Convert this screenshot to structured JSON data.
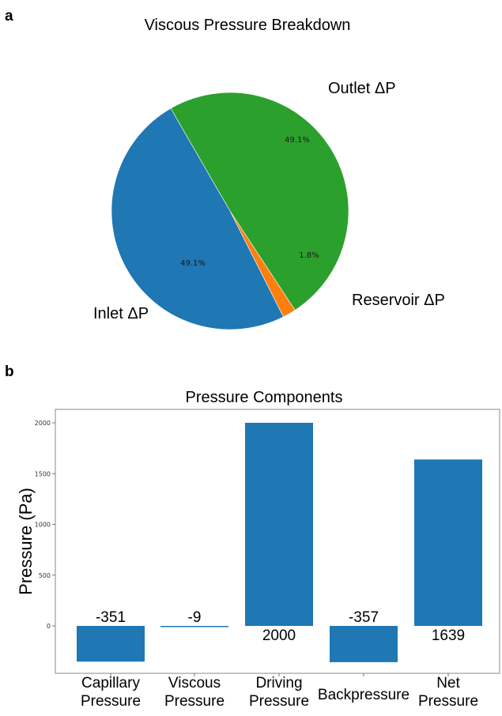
{
  "panel_a": {
    "label": "a"
  },
  "panel_b": {
    "label": "b"
  },
  "chart_data": [
    {
      "type": "pie",
      "title": "Viscous Pressure Breakdown",
      "slices": [
        {
          "label": "Inlet ΔP",
          "value": 49.1,
          "pct_label": "49.1%",
          "color": "#1f77b4"
        },
        {
          "label": "Reservoir ΔP",
          "value": 1.8,
          "pct_label": "1.8%",
          "color": "#ff7f0e"
        },
        {
          "label": "Outlet ΔP",
          "value": 49.1,
          "pct_label": "49.1%",
          "color": "#2ca02c"
        }
      ]
    },
    {
      "type": "bar",
      "title": "Pressure Components",
      "ylabel": "Pressure (Pa)",
      "xlabel": "",
      "categories": [
        [
          "Capillary",
          "Pressure"
        ],
        [
          "Viscous",
          "Pressure"
        ],
        [
          "Driving",
          "Pressure"
        ],
        [
          "Backpressure"
        ],
        [
          "Net",
          "Pressure"
        ]
      ],
      "values": [
        -351,
        -9,
        2000,
        -357,
        1639
      ],
      "value_labels": [
        "-351",
        "-9",
        "2000",
        "-357",
        "1639"
      ],
      "yticks": [
        0,
        500,
        1000,
        1500,
        2000
      ],
      "ylim": [
        -430,
        2080
      ],
      "grid": false,
      "color": "#1f77b4"
    }
  ]
}
